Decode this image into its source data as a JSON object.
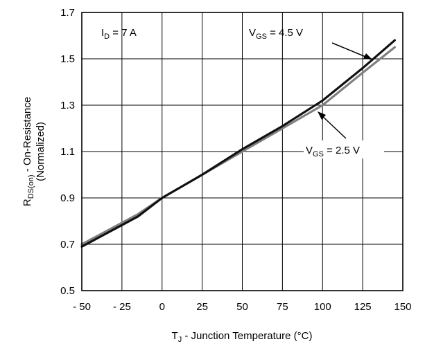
{
  "chart_data": {
    "type": "line",
    "xlabel": {
      "main": "T",
      "sub": "J",
      "rest": " - Junction Temperature (°C)"
    },
    "ylabel": {
      "main": "R",
      "sub": "DS(on)",
      "rest": " - On-Resistance",
      "line2": "(Normalized)"
    },
    "xlim": [
      -50,
      150
    ],
    "ylim": [
      0.5,
      1.7
    ],
    "xticks": [
      -50,
      -25,
      0,
      25,
      50,
      75,
      100,
      125,
      150
    ],
    "xtick_labels": [
      "- 50",
      "- 25",
      "0",
      "25",
      "50",
      "75",
      "100",
      "125",
      "150"
    ],
    "yticks": [
      0.5,
      0.7,
      0.9,
      1.1,
      1.3,
      1.5,
      1.7
    ],
    "ytick_labels": [
      "0.5",
      "0.7",
      "0.9",
      "1.1",
      "1.3",
      "1.5",
      "1.7"
    ],
    "grid": true,
    "condition": {
      "main": "I",
      "sub": "D",
      "rest": " = 7 A"
    },
    "series": [
      {
        "name": "VGS = 4.5 V",
        "label": {
          "main": "V",
          "sub": "GS",
          "rest": " = 4.5 V"
        },
        "color": "#111111",
        "x": [
          -50,
          -15,
          0,
          25,
          50,
          75,
          100,
          125,
          145
        ],
        "y": [
          0.69,
          0.82,
          0.9,
          1.0,
          1.11,
          1.21,
          1.32,
          1.46,
          1.58
        ]
      },
      {
        "name": "VGS = 2.5 V",
        "label": {
          "main": "V",
          "sub": "GS",
          "rest": " = 2.5 V"
        },
        "color": "#808080",
        "x": [
          -50,
          -15,
          0,
          25,
          50,
          75,
          100,
          125,
          145
        ],
        "y": [
          0.7,
          0.83,
          0.9,
          1.0,
          1.1,
          1.2,
          1.3,
          1.44,
          1.55
        ]
      }
    ]
  }
}
